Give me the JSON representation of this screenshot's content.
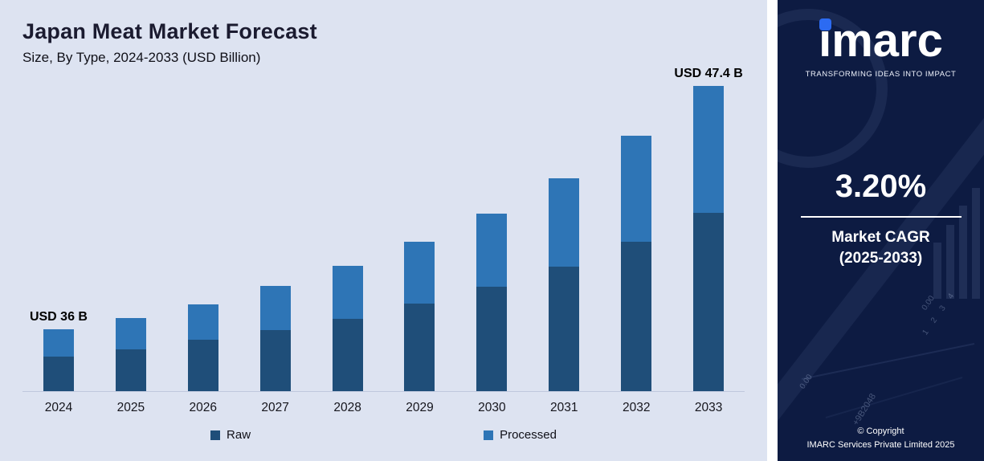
{
  "chart": {
    "title": "Japan Meat Market Forecast",
    "subtitle": "Size, By Type, 2024-2033 (USD Billion)"
  },
  "chart_data": {
    "type": "bar",
    "stacked": true,
    "title": "Japan Meat Market Forecast",
    "subtitle": "Size, By Type, 2024-2033 (USD Billion)",
    "unit": "USD Billion",
    "categories": [
      "2024",
      "2025",
      "2026",
      "2027",
      "2028",
      "2029",
      "2030",
      "2031",
      "2032",
      "2033"
    ],
    "series": [
      {
        "name": "Raw",
        "color": "#1f4e79",
        "values": [
          43,
          52,
          64,
          76,
          90,
          108,
          129,
          154,
          185,
          221
        ]
      },
      {
        "name": "Processed",
        "color": "#2e75b6",
        "values": [
          34,
          39,
          44,
          54,
          65,
          77,
          91,
          110,
          131,
          157
        ]
      }
    ],
    "values_note": "bar heights are stylized visual units; only 2024 and 2033 totals are labeled",
    "totals_labeled": {
      "2024": 36,
      "2033": 47.4
    },
    "annotations": [
      "USD 36 B",
      "",
      "",
      "",
      "",
      "",
      "",
      "",
      "",
      "USD 47.4 B"
    ],
    "legend_position": "bottom",
    "x_axis_visible": true,
    "y_axis_visible": false,
    "grid": false
  },
  "sidebar": {
    "logo_text": "imarc",
    "tagline": "TRANSFORMING IDEAS INTO IMPACT",
    "cagr_value": "3.20%",
    "cagr_label_line1": "Market CAGR",
    "cagr_label_line2": "(2025-2033)",
    "copyright_line1": "© Copyright",
    "copyright_line2": "IMARC Services Private Limited 2025",
    "accent_color": "#2c6bf2",
    "background_color": "#0d1b42",
    "decor": {
      "tick_a": "0.00",
      "scale_numbers": "1 2 3 4",
      "code": "+9B2048",
      "tick_d": "0.00"
    }
  }
}
